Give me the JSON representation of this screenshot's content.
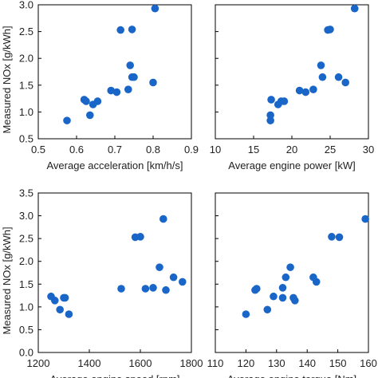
{
  "chart_data": [
    {
      "type": "scatter",
      "panel": "top-left",
      "xlabel": "Average acceleration [km/h/s]",
      "ylabel": "Measured NOx [g/kWh]",
      "xlim": [
        0.5,
        0.9
      ],
      "ylim": [
        0.5,
        3.0
      ],
      "xticks": [
        "0.5",
        "0.6",
        "0.7",
        "0.8",
        "0.9"
      ],
      "yticks": [
        "0.5",
        "1.0",
        "1.5",
        "2.0",
        "2.5",
        "3.0"
      ],
      "x": [
        0.575,
        0.62,
        0.625,
        0.635,
        0.643,
        0.655,
        0.69,
        0.705,
        0.715,
        0.735,
        0.74,
        0.745,
        0.745,
        0.75,
        0.8,
        0.805
      ],
      "y": [
        0.84,
        1.23,
        1.2,
        0.94,
        1.14,
        1.2,
        1.4,
        1.37,
        2.53,
        1.42,
        1.87,
        1.65,
        2.54,
        1.65,
        1.55,
        2.93
      ]
    },
    {
      "type": "scatter",
      "panel": "top-right",
      "xlabel": "Average engine power [kW]",
      "ylabel": "",
      "xlim": [
        10,
        30
      ],
      "ylim": [
        0.5,
        3.0
      ],
      "xticks": [
        "10",
        "15",
        "20",
        "25",
        "30"
      ],
      "yticks": [],
      "x": [
        17.2,
        17.2,
        17.3,
        18.2,
        18.6,
        19.0,
        21.0,
        21.8,
        22.8,
        23.8,
        24.0,
        24.7,
        25.0,
        26.1,
        27.0,
        28.2
      ],
      "y": [
        0.84,
        0.94,
        1.23,
        1.14,
        1.2,
        1.2,
        1.4,
        1.37,
        1.42,
        1.87,
        1.65,
        2.53,
        2.54,
        1.65,
        1.55,
        2.93
      ]
    },
    {
      "type": "scatter",
      "panel": "bottom-left",
      "xlabel": "Average engine speed [rpm]",
      "ylabel": "Measured NOx [g/kWh]",
      "xlim": [
        1200,
        1800
      ],
      "ylim": [
        0.0,
        3.5
      ],
      "xticks": [
        "1200",
        "1400",
        "1600",
        "1800"
      ],
      "yticks": [
        "0.0",
        "0.5",
        "1.0",
        "1.5",
        "2.0",
        "2.5",
        "3.0",
        "3.5"
      ],
      "x": [
        1250,
        1265,
        1285,
        1300,
        1305,
        1320,
        1525,
        1580,
        1600,
        1620,
        1650,
        1675,
        1690,
        1700,
        1730,
        1765
      ],
      "y": [
        1.23,
        1.14,
        0.94,
        1.2,
        1.2,
        0.84,
        1.4,
        2.53,
        2.54,
        1.4,
        1.42,
        1.87,
        2.93,
        1.37,
        1.65,
        1.55
      ]
    },
    {
      "type": "scatter",
      "panel": "bottom-right",
      "xlabel": "Average engine torque [Nm]",
      "ylabel": "",
      "xlim": [
        110,
        160
      ],
      "ylim": [
        0.0,
        3.5
      ],
      "xticks": [
        "110",
        "120",
        "130",
        "140",
        "150",
        "160"
      ],
      "yticks": [],
      "x": [
        120,
        123,
        123.5,
        127,
        129,
        132,
        132,
        133,
        134.5,
        135.5,
        136,
        142,
        143,
        148,
        150.5,
        159
      ],
      "y": [
        0.84,
        1.37,
        1.4,
        0.94,
        1.23,
        1.42,
        1.2,
        1.65,
        1.87,
        1.2,
        1.14,
        1.65,
        1.55,
        2.54,
        2.53,
        2.93
      ]
    }
  ],
  "colors": {
    "marker": "#1a66c8",
    "axis": "#000000",
    "text": "#222222"
  }
}
